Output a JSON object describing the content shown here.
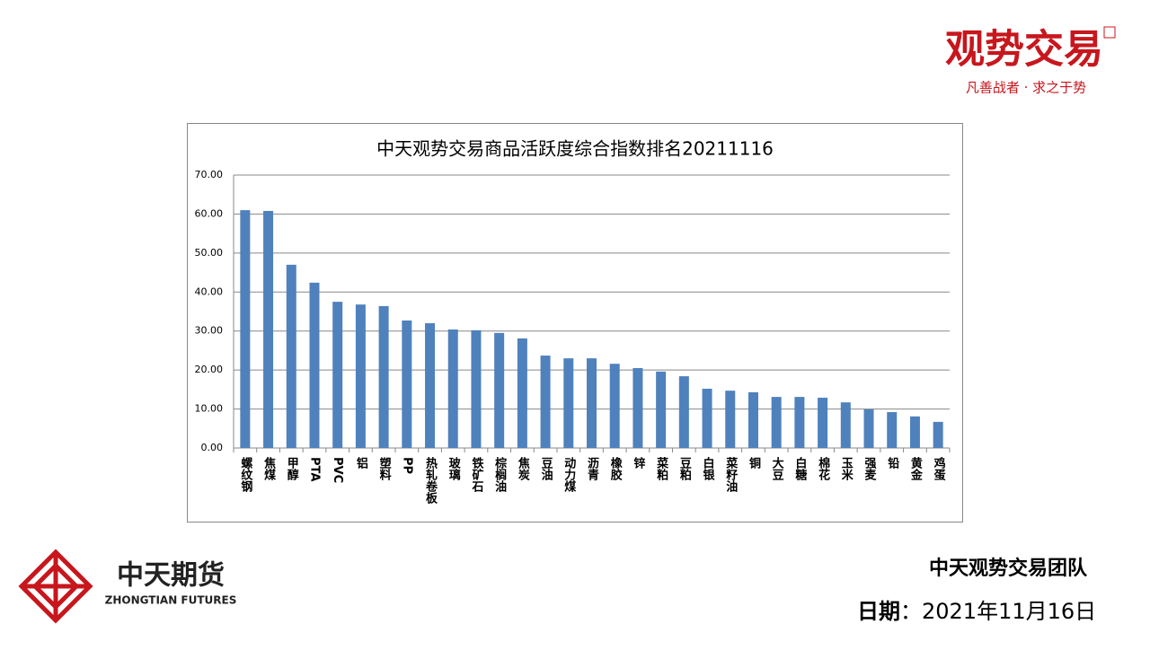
{
  "brand": {
    "name": "观势交易",
    "slogan": "凡善战者 · 求之于势"
  },
  "company": {
    "name": "中天期货",
    "name_en": "ZHONGTIAN FUTURES"
  },
  "footer": {
    "team": "中天观势交易团队",
    "date_label": "日期",
    "date": "：2021年11月16日"
  },
  "chart_data": {
    "type": "bar",
    "title": "中天观势交易商品活跃度综合指数排名20211116",
    "categories": [
      "螺纹钢",
      "焦煤",
      "甲醇",
      "PTA",
      "PVC",
      "铝",
      "塑料",
      "PP",
      "热轧卷板",
      "玻璃",
      "铁矿石",
      "棕榈油",
      "焦炭",
      "豆油",
      "动力煤",
      "沥青",
      "橡胶",
      "锌",
      "菜粕",
      "豆粕",
      "白银",
      "菜籽油",
      "铜",
      "大豆",
      "白糖",
      "棉花",
      "玉米",
      "强麦",
      "铅",
      "黄金",
      "鸡蛋"
    ],
    "values": [
      61.0,
      60.8,
      47.0,
      42.4,
      37.5,
      36.8,
      36.4,
      32.7,
      32.0,
      30.4,
      30.2,
      29.5,
      28.1,
      23.7,
      23.0,
      23.0,
      21.6,
      20.5,
      19.6,
      18.4,
      15.2,
      14.7,
      14.3,
      13.1,
      13.1,
      12.9,
      11.7,
      9.9,
      9.2,
      8.1,
      6.7
    ],
    "color": "#4f81bd",
    "ylim": [
      0,
      70
    ],
    "yticks": [
      {
        "value": 0,
        "label": "0.00"
      },
      {
        "value": 10,
        "label": "10.00"
      },
      {
        "value": 20,
        "label": "20.00"
      },
      {
        "value": 30,
        "label": "30.00"
      },
      {
        "value": 40,
        "label": "40.00"
      },
      {
        "value": 50,
        "label": "50.00"
      },
      {
        "value": 60,
        "label": "60.00"
      },
      {
        "value": 70,
        "label": "70.00"
      }
    ],
    "grid": true
  }
}
